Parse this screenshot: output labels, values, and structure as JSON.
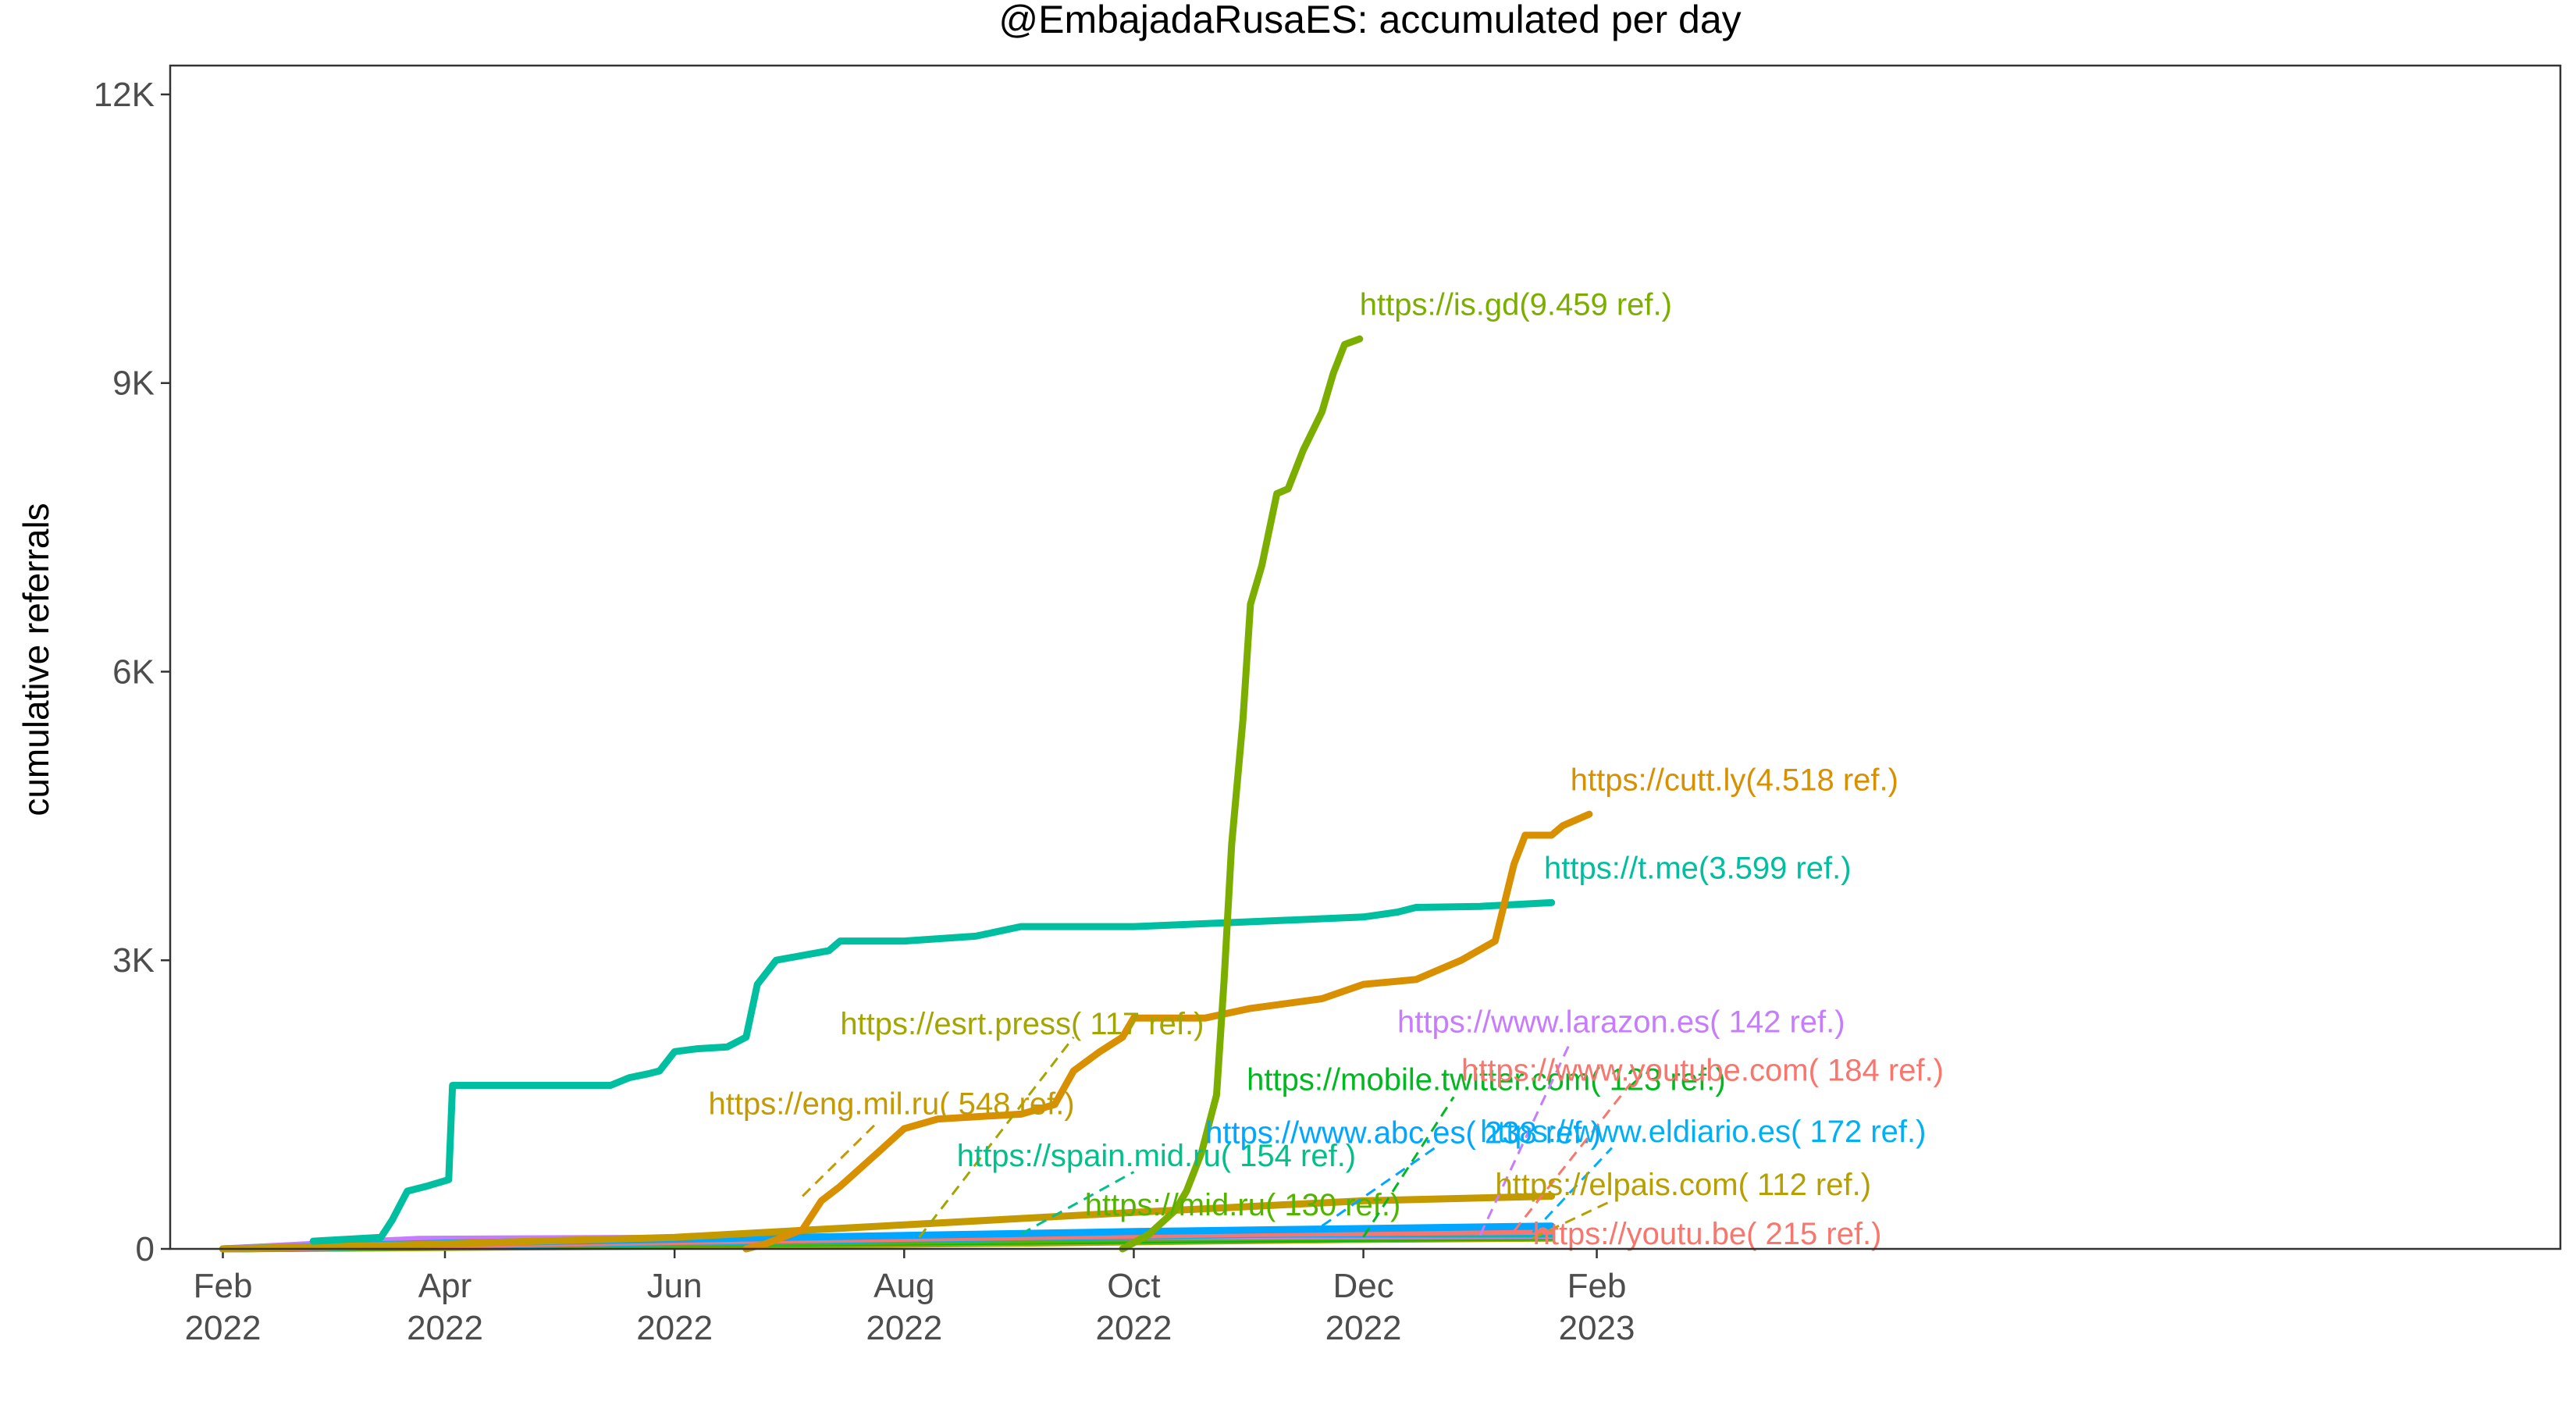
{
  "chart_data": {
    "type": "line",
    "title": "@EmbajadaRusaES: accumulated per day",
    "xlabel": "",
    "ylabel": "cumulative referrals",
    "x_range": [
      "2022-01-18",
      "2023-10-15"
    ],
    "ylim": [
      0,
      12300
    ],
    "y_ticks": [
      {
        "value": 0,
        "label": "0"
      },
      {
        "value": 3000,
        "label": "3K"
      },
      {
        "value": 6000,
        "label": "6K"
      },
      {
        "value": 9000,
        "label": "9K"
      },
      {
        "value": 12000,
        "label": "12K"
      }
    ],
    "x_ticks": [
      {
        "date": "2022-02-01",
        "month": "Feb",
        "year": "2022"
      },
      {
        "date": "2022-04-01",
        "month": "Apr",
        "year": "2022"
      },
      {
        "date": "2022-06-01",
        "month": "Jun",
        "year": "2022"
      },
      {
        "date": "2022-08-01",
        "month": "Aug",
        "year": "2022"
      },
      {
        "date": "2022-10-01",
        "month": "Oct",
        "year": "2022"
      },
      {
        "date": "2022-12-01",
        "month": "Dec",
        "year": "2022"
      },
      {
        "date": "2023-02-01",
        "month": "Feb",
        "year": "2023"
      }
    ],
    "grid": false,
    "legend": "none (direct labels)",
    "series": [
      {
        "name": "https://is.gd",
        "label": "https://is.gd(9.459 ref.)",
        "color": "#7CAE00",
        "points": [
          [
            "2022-09-28",
            0
          ],
          [
            "2022-10-05",
            150
          ],
          [
            "2022-10-12",
            400
          ],
          [
            "2022-10-15",
            600
          ],
          [
            "2022-10-19",
            1000
          ],
          [
            "2022-10-23",
            1600
          ],
          [
            "2022-10-25",
            2800
          ],
          [
            "2022-10-27",
            4200
          ],
          [
            "2022-10-30",
            5500
          ],
          [
            "2022-11-01",
            6700
          ],
          [
            "2022-11-04",
            7100
          ],
          [
            "2022-11-08",
            7850
          ],
          [
            "2022-11-11",
            7900
          ],
          [
            "2022-11-15",
            8300
          ],
          [
            "2022-11-20",
            8700
          ],
          [
            "2022-11-23",
            9100
          ],
          [
            "2022-11-26",
            9400
          ],
          [
            "2022-11-30",
            9459
          ]
        ]
      },
      {
        "name": "https://cutt.ly",
        "label": "https://cutt.ly(4.518 ref.)",
        "color": "#D89000",
        "points": [
          [
            "2022-06-20",
            0
          ],
          [
            "2022-06-25",
            50
          ],
          [
            "2022-07-05",
            200
          ],
          [
            "2022-07-10",
            500
          ],
          [
            "2022-07-15",
            650
          ],
          [
            "2022-07-25",
            1000
          ],
          [
            "2022-08-01",
            1250
          ],
          [
            "2022-08-10",
            1350
          ],
          [
            "2022-09-01",
            1400
          ],
          [
            "2022-09-10",
            1500
          ],
          [
            "2022-09-15",
            1850
          ],
          [
            "2022-09-22",
            2050
          ],
          [
            "2022-09-28",
            2200
          ],
          [
            "2022-10-01",
            2400
          ],
          [
            "2022-10-20",
            2400
          ],
          [
            "2022-11-01",
            2500
          ],
          [
            "2022-11-20",
            2600
          ],
          [
            "2022-12-01",
            2750
          ],
          [
            "2022-12-15",
            2800
          ],
          [
            "2022-12-27",
            3000
          ],
          [
            "2023-01-05",
            3200
          ],
          [
            "2023-01-10",
            4000
          ],
          [
            "2023-01-13",
            4300
          ],
          [
            "2023-01-20",
            4300
          ],
          [
            "2023-01-23",
            4400
          ],
          [
            "2023-01-30",
            4518
          ]
        ]
      },
      {
        "name": "https://t.me",
        "label": "https://t.me(3.599 ref.)",
        "color": "#00BFA0",
        "points": [
          [
            "2022-02-25",
            80
          ],
          [
            "2022-03-15",
            120
          ],
          [
            "2022-03-18",
            300
          ],
          [
            "2022-03-22",
            600
          ],
          [
            "2022-03-27",
            650
          ],
          [
            "2022-04-02",
            720
          ],
          [
            "2022-04-03",
            1700
          ],
          [
            "2022-05-01",
            1700
          ],
          [
            "2022-05-15",
            1700
          ],
          [
            "2022-05-20",
            1780
          ],
          [
            "2022-05-25",
            1820
          ],
          [
            "2022-05-28",
            1850
          ],
          [
            "2022-06-01",
            2050
          ],
          [
            "2022-06-07",
            2080
          ],
          [
            "2022-06-15",
            2100
          ],
          [
            "2022-06-20",
            2200
          ],
          [
            "2022-06-23",
            2750
          ],
          [
            "2022-06-28",
            3000
          ],
          [
            "2022-07-05",
            3050
          ],
          [
            "2022-07-12",
            3100
          ],
          [
            "2022-07-15",
            3200
          ],
          [
            "2022-08-01",
            3200
          ],
          [
            "2022-08-20",
            3250
          ],
          [
            "2022-09-01",
            3350
          ],
          [
            "2022-10-01",
            3350
          ],
          [
            "2022-11-01",
            3400
          ],
          [
            "2022-12-01",
            3450
          ],
          [
            "2022-12-10",
            3500
          ],
          [
            "2022-12-15",
            3550
          ],
          [
            "2023-01-01",
            3560
          ],
          [
            "2023-01-20",
            3599
          ]
        ]
      },
      {
        "name": "https://esrt.press",
        "label": "https://esrt.press(  117 ref.)",
        "color": "#A3A500",
        "points": [
          [
            "2022-02-01",
            0
          ],
          [
            "2022-06-01",
            30
          ],
          [
            "2022-09-01",
            60
          ],
          [
            "2022-12-01",
            100
          ],
          [
            "2023-01-20",
            117
          ]
        ]
      },
      {
        "name": "https://eng.mil.ru",
        "label": "https://eng.mil.ru(  548 ref.)",
        "color": "#C49A00",
        "points": [
          [
            "2022-02-01",
            0
          ],
          [
            "2022-03-20",
            40
          ],
          [
            "2022-06-01",
            120
          ],
          [
            "2022-08-01",
            250
          ],
          [
            "2022-10-01",
            380
          ],
          [
            "2022-12-01",
            500
          ],
          [
            "2023-01-20",
            548
          ]
        ]
      },
      {
        "name": "https://spain.mid.ru",
        "label": "https://spain.mid.ru(  154 ref.)",
        "color": "#00C08B",
        "points": [
          [
            "2022-02-25",
            30
          ],
          [
            "2022-05-01",
            80
          ],
          [
            "2022-08-01",
            130
          ],
          [
            "2022-09-01",
            150
          ],
          [
            "2022-11-01",
            154
          ],
          [
            "2023-01-20",
            154
          ]
        ]
      },
      {
        "name": "https://mid.ru",
        "label": "https://mid.ru(  130 ref.)",
        "color": "#53B400",
        "points": [
          [
            "2022-02-01",
            0
          ],
          [
            "2022-05-01",
            40
          ],
          [
            "2022-08-01",
            80
          ],
          [
            "2022-11-01",
            120
          ],
          [
            "2023-01-20",
            130
          ]
        ]
      },
      {
        "name": "https://mobile.twitter.com",
        "label": "https://mobile.twitter.com(  123 ref.)",
        "color": "#00B81F",
        "points": [
          [
            "2022-02-01",
            0
          ],
          [
            "2022-06-01",
            50
          ],
          [
            "2022-09-01",
            80
          ],
          [
            "2022-12-01",
            110
          ],
          [
            "2023-01-20",
            123
          ]
        ]
      },
      {
        "name": "https://www.abc.es",
        "label": "https://www.abc.es(  238 ref.)",
        "color": "#00A6FF",
        "points": [
          [
            "2022-02-01",
            0
          ],
          [
            "2022-04-01",
            60
          ],
          [
            "2022-07-01",
            120
          ],
          [
            "2022-10-01",
            180
          ],
          [
            "2023-01-20",
            238
          ]
        ]
      },
      {
        "name": "https://www.larazon.es",
        "label": "https://www.larazon.es(  142 ref.)",
        "color": "#C77CFF",
        "points": [
          [
            "2022-02-01",
            0
          ],
          [
            "2022-03-25",
            100
          ],
          [
            "2022-06-01",
            110
          ],
          [
            "2022-09-01",
            125
          ],
          [
            "2023-01-20",
            142
          ]
        ]
      },
      {
        "name": "https://www.youtube.com",
        "label": "https://www.youtube.com(  184 ref.)",
        "color": "#F8766D",
        "points": [
          [
            "2022-02-01",
            0
          ],
          [
            "2022-05-01",
            60
          ],
          [
            "2022-08-01",
            110
          ],
          [
            "2022-11-01",
            160
          ],
          [
            "2023-01-20",
            184
          ]
        ]
      },
      {
        "name": "https://www.eldiario.es",
        "label": "https://www.eldiario.es(  172 ref.)",
        "color": "#00B0F6",
        "points": [
          [
            "2022-02-01",
            0
          ],
          [
            "2022-05-01",
            50
          ],
          [
            "2022-08-01",
            100
          ],
          [
            "2022-11-01",
            150
          ],
          [
            "2023-01-20",
            172
          ]
        ]
      },
      {
        "name": "https://elpais.com",
        "label": "https://elpais.com(  112 ref.)",
        "color": "#B79F00",
        "points": [
          [
            "2022-02-01",
            0
          ],
          [
            "2022-05-01",
            30
          ],
          [
            "2022-08-01",
            60
          ],
          [
            "2022-11-01",
            90
          ],
          [
            "2023-01-20",
            112
          ]
        ]
      },
      {
        "name": "https://youtu.be",
        "label": "https://youtu.be(  215 ref.)",
        "color": "#F8766D",
        "points": [
          [
            "2022-02-01",
            0
          ],
          [
            "2022-04-01",
            40
          ],
          [
            "2022-07-01",
            100
          ],
          [
            "2022-10-01",
            160
          ],
          [
            "2022-12-01",
            190
          ],
          [
            "2023-01-20",
            215
          ]
        ]
      }
    ]
  }
}
